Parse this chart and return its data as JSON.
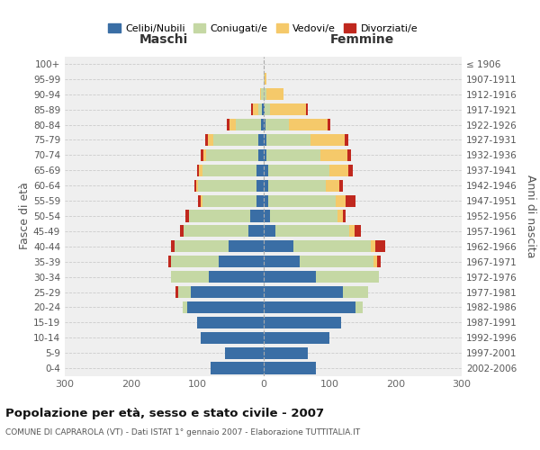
{
  "age_groups": [
    "0-4",
    "5-9",
    "10-14",
    "15-19",
    "20-24",
    "25-29",
    "30-34",
    "35-39",
    "40-44",
    "45-49",
    "50-54",
    "55-59",
    "60-64",
    "65-69",
    "70-74",
    "75-79",
    "80-84",
    "85-89",
    "90-94",
    "95-99",
    "100+"
  ],
  "birth_years": [
    "2002-2006",
    "1997-2001",
    "1992-1996",
    "1987-1991",
    "1982-1986",
    "1977-1981",
    "1972-1976",
    "1967-1971",
    "1962-1966",
    "1957-1961",
    "1952-1956",
    "1947-1951",
    "1942-1946",
    "1937-1941",
    "1932-1936",
    "1927-1931",
    "1922-1926",
    "1917-1921",
    "1912-1916",
    "1907-1911",
    "≤ 1906"
  ],
  "maschi": {
    "celibi": [
      80,
      58,
      95,
      100,
      115,
      110,
      82,
      68,
      52,
      22,
      20,
      10,
      10,
      10,
      8,
      8,
      3,
      2,
      0,
      0,
      0
    ],
    "coniugati": [
      0,
      0,
      0,
      0,
      7,
      18,
      58,
      72,
      82,
      98,
      92,
      82,
      88,
      82,
      78,
      68,
      38,
      6,
      3,
      0,
      0
    ],
    "vedovi": [
      0,
      0,
      0,
      0,
      0,
      0,
      0,
      0,
      0,
      0,
      0,
      3,
      3,
      5,
      5,
      8,
      10,
      8,
      2,
      0,
      0
    ],
    "divorziati": [
      0,
      0,
      0,
      0,
      0,
      4,
      0,
      3,
      5,
      6,
      6,
      3,
      3,
      3,
      4,
      4,
      4,
      3,
      0,
      0,
      0
    ]
  },
  "femmine": {
    "nubili": [
      80,
      68,
      100,
      118,
      140,
      120,
      80,
      55,
      45,
      18,
      10,
      8,
      8,
      8,
      5,
      5,
      3,
      2,
      0,
      0,
      0
    ],
    "coniugate": [
      0,
      0,
      0,
      0,
      10,
      38,
      95,
      112,
      118,
      112,
      102,
      102,
      87,
      92,
      82,
      66,
      36,
      8,
      5,
      2,
      0
    ],
    "vedove": [
      0,
      0,
      0,
      0,
      0,
      0,
      0,
      5,
      6,
      8,
      8,
      14,
      20,
      28,
      40,
      52,
      58,
      55,
      25,
      3,
      0
    ],
    "divorziate": [
      0,
      0,
      0,
      0,
      0,
      0,
      0,
      5,
      15,
      10,
      5,
      16,
      5,
      8,
      5,
      5,
      5,
      3,
      0,
      0,
      0
    ]
  },
  "colors": {
    "celibi": "#3a6ea5",
    "coniugati": "#c5d8a4",
    "vedovi": "#f5c96a",
    "divorziati": "#c0281e"
  },
  "xlim": 300,
  "title": "Popolazione per età, sesso e stato civile - 2007",
  "subtitle": "COMUNE DI CAPRAROLA (VT) - Dati ISTAT 1° gennaio 2007 - Elaborazione TUTTITALIA.IT",
  "ylabel_left": "Fasce di età",
  "ylabel_right": "Anni di nascita",
  "xlabel_maschi": "Maschi",
  "xlabel_femmine": "Femmine",
  "legend_labels": [
    "Celibi/Nubili",
    "Coniugati/e",
    "Vedovi/e",
    "Divorziati/e"
  ],
  "background_color": "#efefef"
}
